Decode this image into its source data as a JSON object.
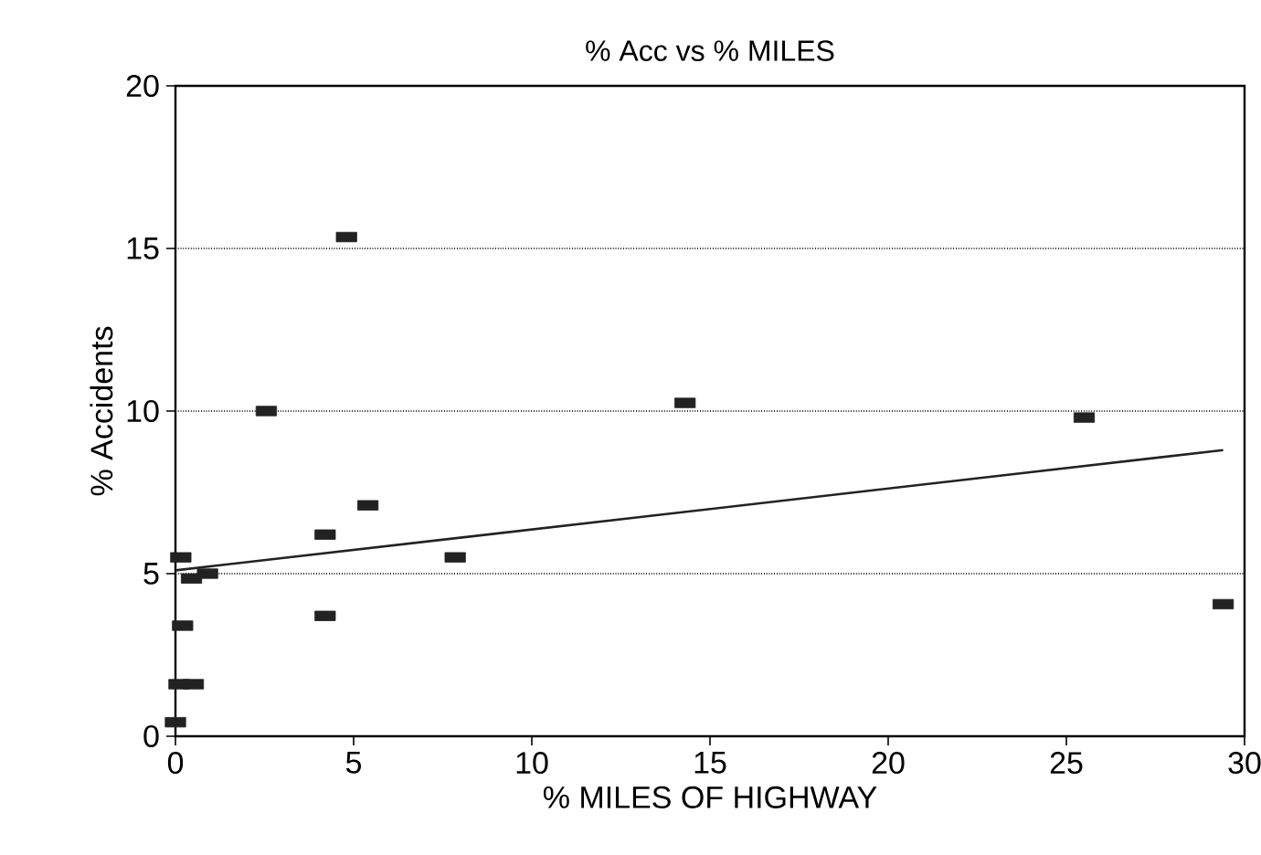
{
  "chart_data": {
    "type": "scatter",
    "title": "% Acc vs % MILES",
    "xlabel": "% MILES OF HIGHWAY",
    "ylabel": "% Accidents",
    "xlim": [
      0,
      30
    ],
    "xticks": [
      0,
      5,
      10,
      15,
      20,
      25,
      30
    ],
    "ylim": [
      0,
      20
    ],
    "yticks": [
      0,
      5,
      10,
      15,
      20
    ],
    "grid": "y",
    "series": [
      {
        "marker": "square",
        "color": "#222222",
        "x": [
          4.8,
          2.55,
          14.3,
          25.5,
          29.4,
          5.4,
          4.2,
          7.85,
          4.2,
          0.15,
          0.45,
          0.9,
          0.2,
          0.1,
          0.5,
          0.0
        ],
        "values": [
          15.35,
          10.0,
          10.25,
          9.8,
          4.06,
          7.1,
          6.2,
          5.5,
          3.7,
          5.5,
          4.85,
          5.0,
          3.4,
          1.6,
          1.6,
          0.43
        ]
      },
      {
        "type": "line",
        "color": "#222222",
        "x": [
          0.0,
          29.4
        ],
        "values": [
          5.1,
          8.8
        ]
      }
    ]
  }
}
